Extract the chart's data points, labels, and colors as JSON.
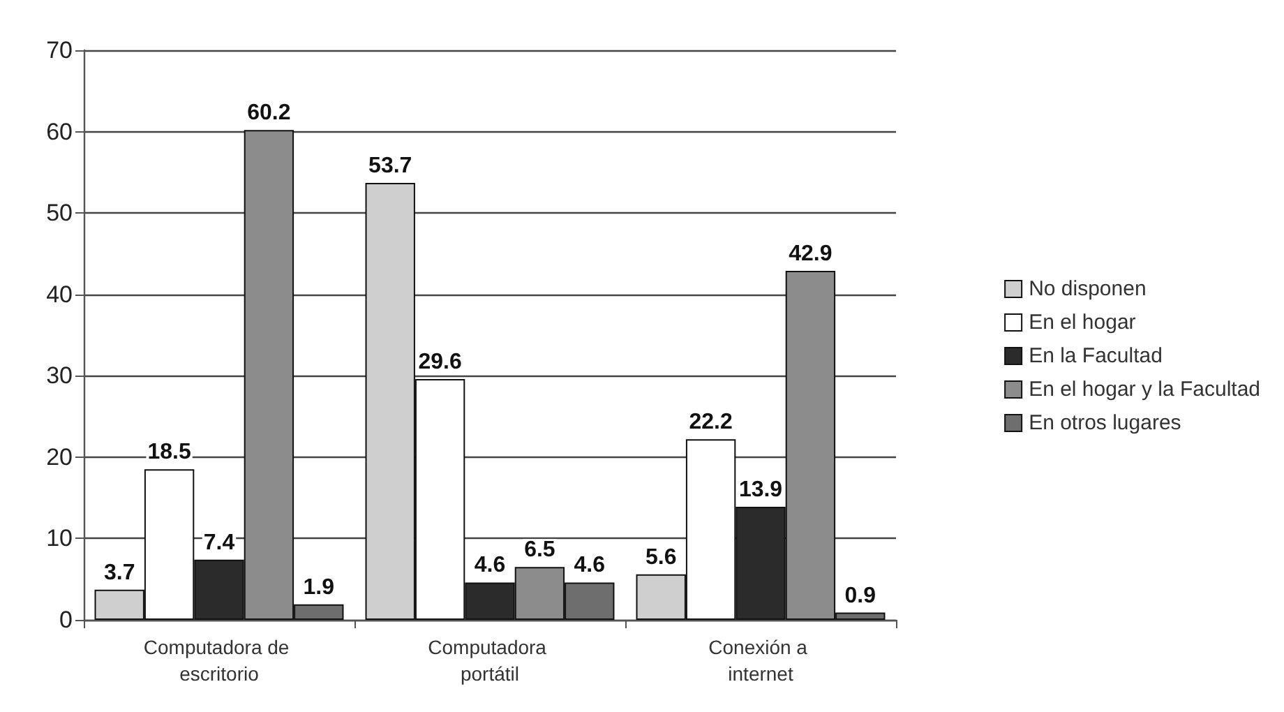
{
  "chart_data": {
    "type": "bar",
    "categories": [
      "Computadora de escritorio",
      "Computadora portátil",
      "Conexión a internet"
    ],
    "series": [
      {
        "name": "No disponen",
        "color": "#cfcfcf",
        "values": [
          3.7,
          53.7,
          5.6
        ]
      },
      {
        "name": "En el hogar",
        "color": "#ffffff",
        "values": [
          18.5,
          29.6,
          22.2
        ]
      },
      {
        "name": "En la Facultad",
        "color": "#2b2b2b",
        "values": [
          7.4,
          4.6,
          13.9
        ]
      },
      {
        "name": "En el hogar y la Facultad",
        "color": "#8c8c8c",
        "values": [
          60.2,
          6.5,
          42.9
        ]
      },
      {
        "name": "En otros lugares",
        "color": "#6e6e6e",
        "values": [
          1.9,
          4.6,
          0.9
        ]
      }
    ],
    "ylim": [
      0,
      70
    ],
    "yticks": [
      0,
      10,
      20,
      30,
      40,
      50,
      60,
      70
    ],
    "grid": "y",
    "legend": "right",
    "data_labels": true
  }
}
